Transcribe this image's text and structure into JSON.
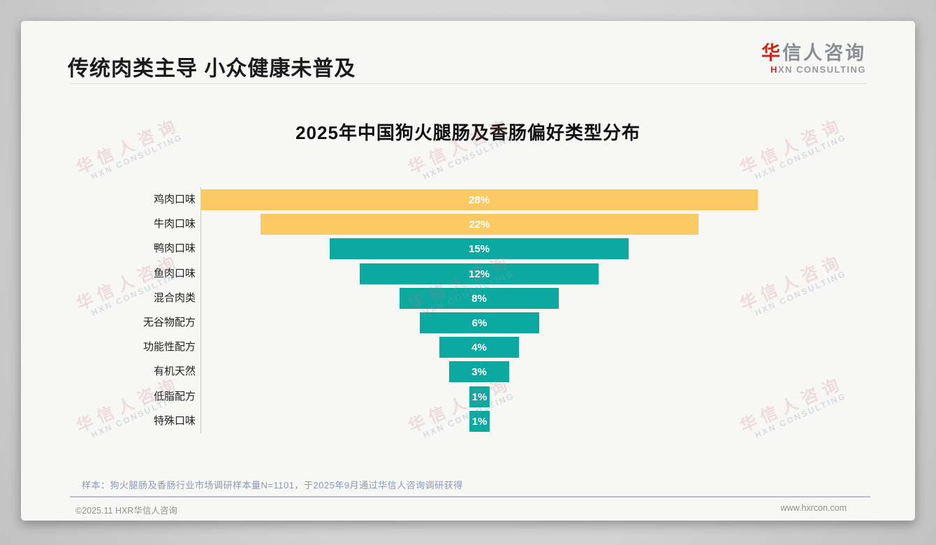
{
  "page": {
    "title": "传统肉类主导 小众健康未普及",
    "logo": {
      "name_accent": "华",
      "name_rest": "信人咨询",
      "sub_accent": "H",
      "sub_rest": "XN CONSULTING",
      "accent_color": "#c8281e"
    },
    "watermark": {
      "line1": "华信人咨询",
      "line2": "HXN CONSULTING"
    },
    "sample_note": "样本：狗火腿肠及香肠行业市场调研样本量N=1101，于2025年9月通过华信人咨询调研获得",
    "footer": {
      "copyright": "©2025.11 HXR华信人咨询",
      "website": "www.hxrcon.com"
    }
  },
  "chart_data": {
    "type": "bar",
    "variant": "horizontal-centered-funnel",
    "title": "2025年中国狗火腿肠及香肠偏好类型分布",
    "categories": [
      "鸡肉口味",
      "牛肉口味",
      "鸭肉口味",
      "鱼肉口味",
      "混合肉类",
      "无谷物配方",
      "功能性配方",
      "有机天然",
      "低脂配方",
      "特殊口味"
    ],
    "values": [
      28,
      22,
      15,
      12,
      8,
      6,
      4,
      3,
      1,
      1
    ],
    "data_labels": [
      "28%",
      "22%",
      "15%",
      "12%",
      "8%",
      "6%",
      "4%",
      "3%",
      "1%",
      "1%"
    ],
    "unit": "%",
    "bar_colors": [
      "#fac961",
      "#fac961",
      "#0ba9a0",
      "#0ba9a0",
      "#0ba9a0",
      "#0ba9a0",
      "#0ba9a0",
      "#0ba9a0",
      "#0ba9a0",
      "#0ba9a0"
    ],
    "palette": {
      "traditional_meat": "#fac961",
      "niche_health": "#0ba9a0"
    },
    "value_label_color": "#ffffff",
    "xlim": [
      0,
      28
    ],
    "grid": false,
    "legend": false,
    "bars_centered": true
  }
}
